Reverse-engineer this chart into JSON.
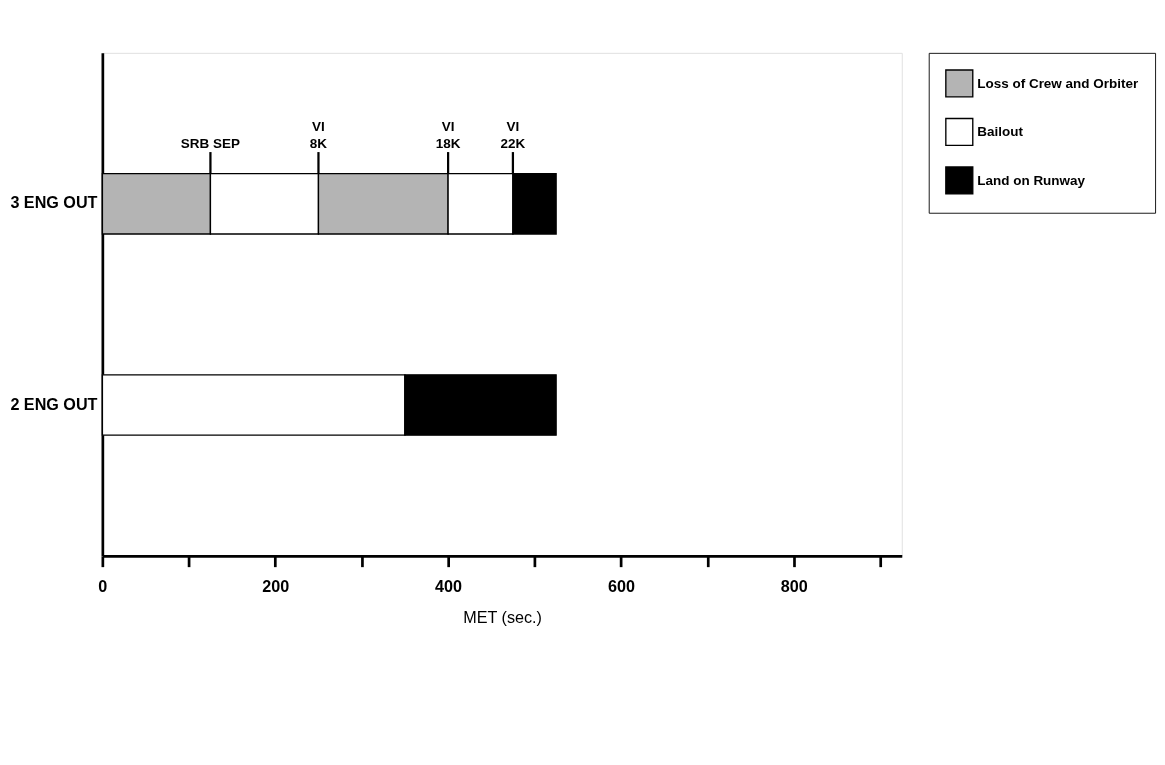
{
  "chart_data": {
    "type": "bar",
    "orientation": "horizontal",
    "stacked": true,
    "xlabel": "MET (sec.)",
    "categories": [
      "3 ENG OUT",
      "2 ENG OUT"
    ],
    "series": [
      {
        "name": "Loss of Crew and Orbiter",
        "color": "#b4b4b4",
        "values": [
          125,
          null
        ]
      },
      {
        "name": "Bailout",
        "color": "#ffffff",
        "values": [
          125,
          350
        ]
      },
      {
        "color": "#b4b4b4",
        "values": [
          150,
          null
        ]
      },
      {
        "color": "#ffffff",
        "values": [
          75,
          null
        ]
      },
      {
        "name": "Land on Runway",
        "color": "#000000",
        "values": [
          50,
          175
        ]
      }
    ],
    "xlim": [
      0,
      925
    ],
    "xticks": [
      0,
      {
        "value": 100,
        "label": null
      },
      200,
      {
        "value": 300,
        "label": null
      },
      400,
      {
        "value": 500,
        "label": null
      },
      600,
      {
        "value": 700,
        "label": null
      },
      800,
      {
        "value": 900,
        "label": null
      }
    ],
    "annotations": [
      {
        "text": "SRB SEP",
        "x": 125
      },
      {
        "text": "VI\n8K",
        "x": 250
      },
      {
        "text": "VI\n18K",
        "x": 400
      },
      {
        "text": "VI\n22K",
        "x": 475
      }
    ],
    "grid": false,
    "legend": "right"
  }
}
